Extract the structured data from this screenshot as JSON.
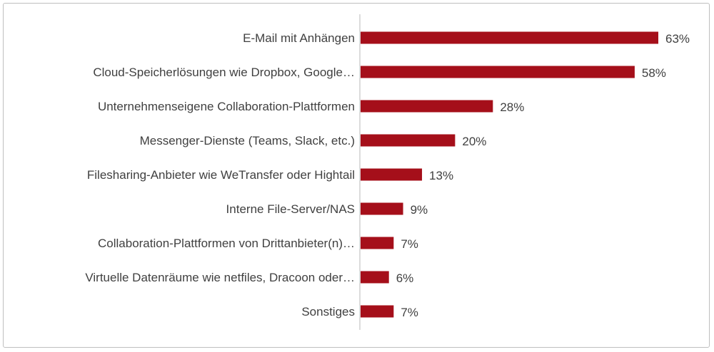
{
  "chart_data": {
    "type": "bar",
    "orientation": "horizontal",
    "categories": [
      "E-Mail mit Anhängen",
      "Cloud-Speicherlösungen wie Dropbox, Google…",
      "Unternehmenseigene Collaboration-Plattformen",
      "Messenger-Dienste (Teams, Slack, etc.)",
      "Filesharing-Anbieter wie WeTransfer oder Hightail",
      "Interne File-Server/NAS",
      "Collaboration-Plattformen von Drittanbieter(n)…",
      "Virtuelle Datenräume wie netfiles, Dracoon oder…",
      "Sonstiges"
    ],
    "values": [
      63,
      58,
      28,
      20,
      13,
      9,
      7,
      6,
      7
    ],
    "value_labels": [
      "63%",
      "58%",
      "28%",
      "20%",
      "13%",
      "9%",
      "7%",
      "6%",
      "7%"
    ],
    "unit": "%",
    "xlim": [
      0,
      70
    ],
    "grid": false,
    "legend": "none",
    "bar_color": "#A50F1A"
  }
}
